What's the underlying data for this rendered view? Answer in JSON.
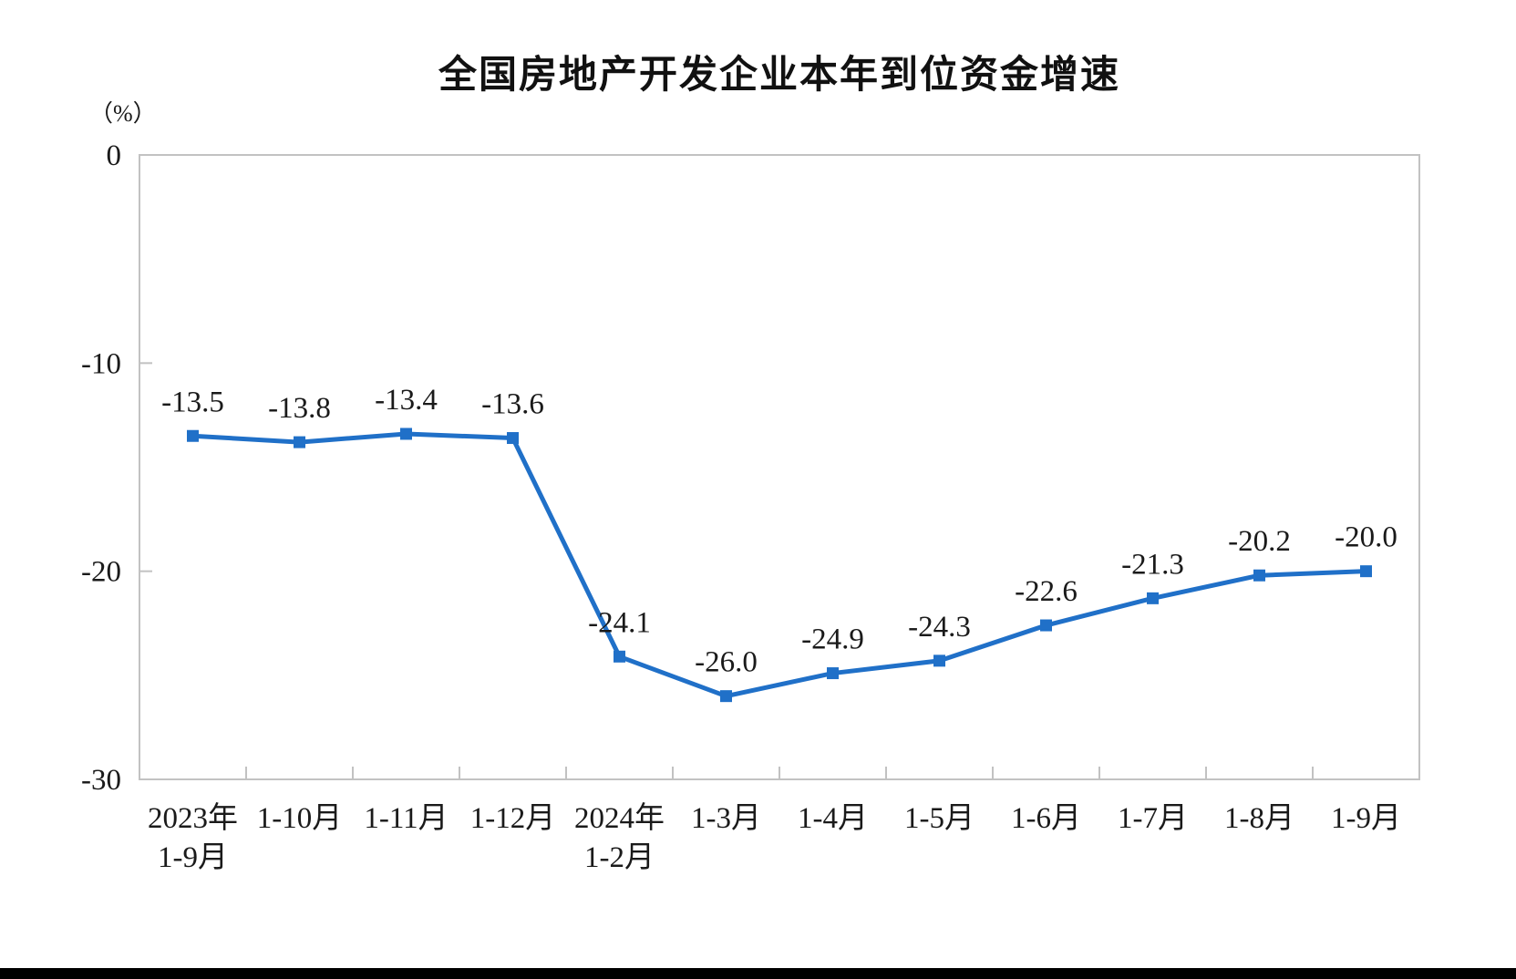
{
  "chart_data": {
    "type": "line",
    "title": "全国房地产开发企业本年到位资金增速",
    "unit_label": "（%）",
    "ylim": [
      -30,
      0
    ],
    "yticks": [
      0,
      -10,
      -20,
      -30
    ],
    "ytick_labels": [
      "0",
      "-10",
      "-20",
      "-30"
    ],
    "grid": "off",
    "legend": "none",
    "categories": [
      {
        "line1": "2023年",
        "line2": "1-9月"
      },
      {
        "line1": "1-10月",
        "line2": ""
      },
      {
        "line1": "1-11月",
        "line2": ""
      },
      {
        "line1": "1-12月",
        "line2": ""
      },
      {
        "line1": "2024年",
        "line2": "1-2月"
      },
      {
        "line1": "1-3月",
        "line2": ""
      },
      {
        "line1": "1-4月",
        "line2": ""
      },
      {
        "line1": "1-5月",
        "line2": ""
      },
      {
        "line1": "1-6月",
        "line2": ""
      },
      {
        "line1": "1-7月",
        "line2": ""
      },
      {
        "line1": "1-8月",
        "line2": ""
      },
      {
        "line1": "1-9月",
        "line2": ""
      }
    ],
    "values": [
      -13.5,
      -13.8,
      -13.4,
      -13.6,
      -24.1,
      -26.0,
      -24.9,
      -24.3,
      -22.6,
      -21.3,
      -20.2,
      -20.0
    ],
    "data_labels": [
      "-13.5",
      "-13.8",
      "-13.4",
      "-13.6",
      "-24.1",
      "-26.0",
      "-24.9",
      "-24.3",
      "-22.6",
      "-21.3",
      "-20.2",
      "-20.0"
    ],
    "colors": {
      "series": "#2070c8",
      "axis": "#c2c2c2",
      "text": "#1a1a1a",
      "title": "#111111",
      "background": "#ffffff",
      "bottom_bar": "#000000"
    }
  }
}
